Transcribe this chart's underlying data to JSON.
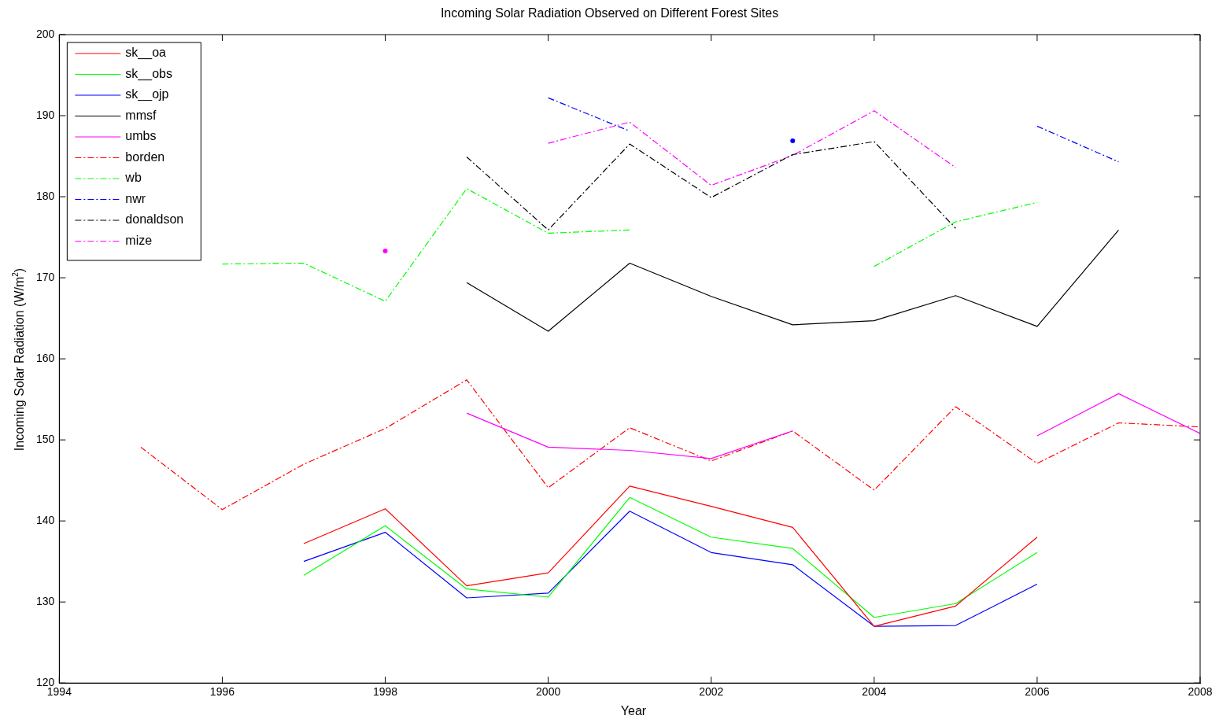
{
  "chart_data": {
    "type": "line",
    "title": "Incoming Solar Radiation Observed on Different Forest Sites",
    "xlabel": "Year",
    "ylabel": "Incoming Solar Radiation (W/m$^{2}$)",
    "x": [
      1995,
      1996,
      1997,
      1998,
      1999,
      2000,
      2001,
      2002,
      2003,
      2004,
      2005,
      2006,
      2007,
      2008
    ],
    "xlim": [
      1994,
      2008
    ],
    "xticks": [
      1994,
      1996,
      1998,
      2000,
      2002,
      2004,
      2006,
      2008
    ],
    "ylim": [
      120,
      200
    ],
    "yticks": [
      120,
      130,
      140,
      150,
      160,
      170,
      180,
      190,
      200
    ],
    "grid": false,
    "legend": "top left",
    "marker": "none",
    "series": [
      {
        "name": "sk__oa",
        "color": "#ff0000",
        "line_style": "solid",
        "values": [
          null,
          null,
          137.2,
          141.5,
          132.0,
          133.6,
          144.3,
          141.8,
          139.2,
          127.0,
          129.5,
          138.0,
          null,
          null
        ]
      },
      {
        "name": "sk__obs",
        "color": "#00ff00",
        "line_style": "solid",
        "values": [
          null,
          null,
          133.3,
          139.4,
          131.6,
          130.6,
          142.9,
          138.0,
          136.6,
          128.1,
          129.8,
          136.1,
          null,
          null
        ]
      },
      {
        "name": "sk__ojp",
        "color": "#0000ff",
        "line_style": "solid",
        "values": [
          null,
          null,
          135.0,
          138.6,
          130.5,
          131.1,
          141.2,
          136.1,
          134.6,
          127.0,
          127.1,
          132.2,
          null,
          null
        ]
      },
      {
        "name": "mmsf",
        "color": "#000000",
        "line_style": "solid",
        "values": [
          null,
          null,
          null,
          null,
          169.4,
          163.4,
          171.8,
          167.7,
          164.2,
          164.7,
          167.8,
          164.0,
          175.9,
          null
        ]
      },
      {
        "name": "umbs",
        "color": "#ff00ff",
        "line_style": "solid",
        "values": [
          null,
          null,
          null,
          null,
          153.3,
          149.1,
          148.7,
          147.7,
          151.1,
          null,
          null,
          150.5,
          155.7,
          150.8
        ]
      },
      {
        "name": "borden",
        "color": "#ff0000",
        "line_style": "dashed",
        "values": [
          149.1,
          141.4,
          147.0,
          151.4,
          157.4,
          144.1,
          151.5,
          147.4,
          151.1,
          143.8,
          154.1,
          147.1,
          152.1,
          151.6
        ]
      },
      {
        "name": "wb",
        "color": "#00ff00",
        "line_style": "dashed",
        "values": [
          null,
          171.7,
          171.8,
          167.1,
          181.0,
          175.5,
          175.9,
          null,
          null,
          171.4,
          176.9,
          179.3,
          null,
          null
        ]
      },
      {
        "name": "nwr",
        "color": "#0000ff",
        "line_style": "dashed",
        "values": [
          null,
          null,
          null,
          null,
          null,
          192.2,
          188.1,
          null,
          186.9,
          null,
          null,
          188.7,
          184.3,
          null
        ]
      },
      {
        "name": "donaldson",
        "color": "#000000",
        "line_style": "dashed",
        "values": [
          null,
          null,
          null,
          null,
          184.9,
          175.9,
          186.5,
          179.9,
          185.2,
          186.8,
          176.1,
          null,
          null,
          null
        ]
      },
      {
        "name": "mize",
        "color": "#ff00ff",
        "line_style": "dashed",
        "values": [
          null,
          null,
          null,
          173.3,
          null,
          186.6,
          189.2,
          181.4,
          185.1,
          190.6,
          183.6,
          null,
          null,
          null
        ]
      }
    ]
  }
}
